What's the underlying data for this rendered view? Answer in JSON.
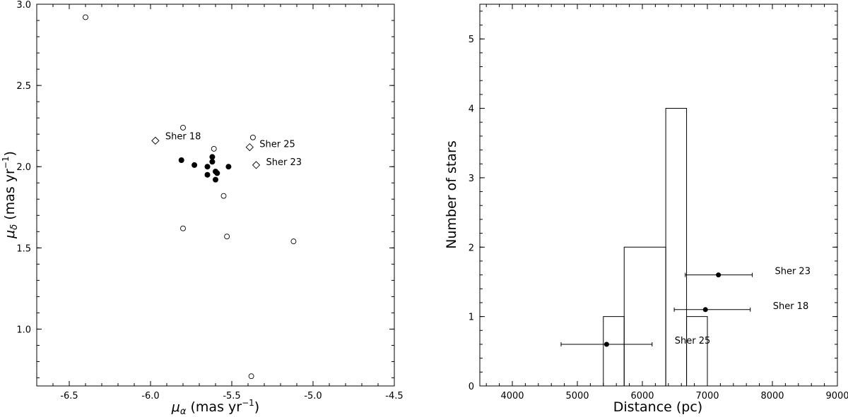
{
  "chart_data": [
    {
      "type": "scatter",
      "xlabel_symbol": "μ",
      "xlabel_sub": "α",
      "xlabel_rest": " (mas yr",
      "xlabel_sup": "−1",
      "xlabel_close": ")",
      "ylabel_symbol": "μ",
      "ylabel_sub": "δ",
      "ylabel_rest": " (mas yr",
      "ylabel_sup": "−1",
      "ylabel_close": ")",
      "xlim": [
        -6.7,
        -4.5
      ],
      "ylim": [
        0.65,
        3.0
      ],
      "xticks": [
        -6.5,
        -6.0,
        -5.5,
        -5.0,
        -4.5
      ],
      "xtick_labels": [
        "-6.5",
        "-6.0",
        "-5.5",
        "-5.0",
        "-4.5"
      ],
      "yticks": [
        1.0,
        1.5,
        2.0,
        2.5,
        3.0
      ],
      "ytick_labels": [
        "1.0",
        "1.5",
        "2.0",
        "2.5",
        "3.0"
      ],
      "series": [
        {
          "marker": "filled-circle",
          "points": [
            {
              "x": -5.81,
              "y": 2.04
            },
            {
              "x": -5.73,
              "y": 2.01
            },
            {
              "x": -5.65,
              "y": 2.0
            },
            {
              "x": -5.62,
              "y": 2.06
            },
            {
              "x": -5.62,
              "y": 2.03
            },
            {
              "x": -5.6,
              "y": 1.97
            },
            {
              "x": -5.65,
              "y": 1.95
            },
            {
              "x": -5.59,
              "y": 1.96
            },
            {
              "x": -5.6,
              "y": 1.92
            },
            {
              "x": -5.52,
              "y": 2.0
            }
          ]
        },
        {
          "marker": "open-circle",
          "points": [
            {
              "x": -6.4,
              "y": 2.92
            },
            {
              "x": -5.8,
              "y": 2.24
            },
            {
              "x": -5.61,
              "y": 2.11
            },
            {
              "x": -5.37,
              "y": 2.18
            },
            {
              "x": -5.55,
              "y": 1.82
            },
            {
              "x": -5.8,
              "y": 1.62
            },
            {
              "x": -5.53,
              "y": 1.57
            },
            {
              "x": -5.12,
              "y": 1.54
            },
            {
              "x": -5.38,
              "y": 0.71
            }
          ]
        },
        {
          "marker": "open-diamond",
          "points": [
            {
              "x": -5.97,
              "y": 2.16,
              "label": "Sher 18"
            },
            {
              "x": -5.39,
              "y": 2.12,
              "label": "Sher 25"
            },
            {
              "x": -5.35,
              "y": 2.01,
              "label": "Sher 23"
            }
          ]
        }
      ]
    },
    {
      "type": "histogram",
      "xlabel": "Distance (pc)",
      "ylabel": "Number of stars",
      "xlim": [
        3500,
        9000
      ],
      "ylim": [
        0,
        5.5
      ],
      "xticks": [
        4000,
        5000,
        6000,
        7000,
        8000,
        9000
      ],
      "xtick_labels": [
        "4000",
        "5000",
        "6000",
        "7000",
        "8000",
        "9000"
      ],
      "yticks": [
        0,
        1,
        2,
        3,
        4,
        5
      ],
      "ytick_labels": [
        "0",
        "1",
        "2",
        "3",
        "4",
        "5"
      ],
      "bins": [
        {
          "x0": 5400,
          "x1": 5720,
          "count": 1
        },
        {
          "x0": 5720,
          "x1": 6360,
          "count": 2
        },
        {
          "x0": 6360,
          "x1": 6680,
          "count": 4
        },
        {
          "x0": 6680,
          "x1": 7000,
          "count": 1
        }
      ],
      "error_points": [
        {
          "x": 5450,
          "y": 0.6,
          "xerr_low": 700,
          "xerr_high": 700,
          "label": "Sher 25"
        },
        {
          "x": 6970,
          "y": 1.1,
          "xerr_low": 480,
          "xerr_high": 690,
          "label": "Sher 18"
        },
        {
          "x": 7170,
          "y": 1.6,
          "xerr_low": 510,
          "xerr_high": 520,
          "label": "Sher 23"
        }
      ]
    }
  ]
}
